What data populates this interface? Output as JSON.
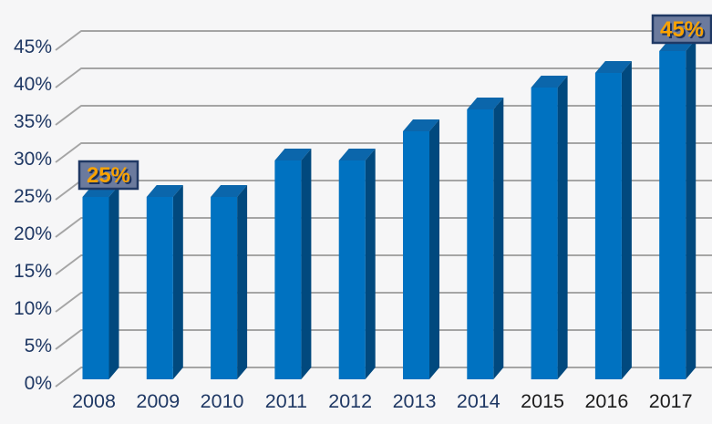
{
  "chart_data": {
    "type": "bar",
    "title": "",
    "subtitle": "",
    "xlabel": "",
    "ylabel": "",
    "categories": [
      "2008",
      "2009",
      "2010",
      "2011",
      "2012",
      "2013",
      "2014",
      "2015",
      "2016",
      "2017"
    ],
    "values": [
      25,
      25,
      25,
      30,
      30,
      34,
      37,
      40,
      42,
      45
    ],
    "unit": "%",
    "ylim": [
      0,
      45
    ],
    "ytick_step": 5,
    "ytick_labels": [
      "0%",
      "5%",
      "10%",
      "15%",
      "20%",
      "25%",
      "30%",
      "35%",
      "40%",
      "45%"
    ],
    "grid": true,
    "legend_position": "none",
    "style_3d": true,
    "data_labels": [
      {
        "category": "2008",
        "text": "25%"
      },
      {
        "category": "2017",
        "text": "45%"
      }
    ]
  },
  "colors": {
    "background": "#f6f6f7",
    "bar_front": "#0072c1",
    "bar_top": "#0b66ab",
    "bar_side": "#01497e",
    "gridline": "#a5a5a5",
    "axis_label": "#1f3864",
    "xlabel_dark": "#1b1b1b",
    "data_label_box_fill": "#6b7a9d",
    "data_label_box_border": "#1f3864",
    "data_label_text": "#f9a200",
    "data_label_shadow": "#1a315e"
  },
  "x_label_colors": [
    "#1f3864",
    "#1f3864",
    "#1f3864",
    "#1f3864",
    "#1f3864",
    "#1f3864",
    "#1f3864",
    "#1b1b1b",
    "#1b1b1b",
    "#1b1b1b"
  ]
}
